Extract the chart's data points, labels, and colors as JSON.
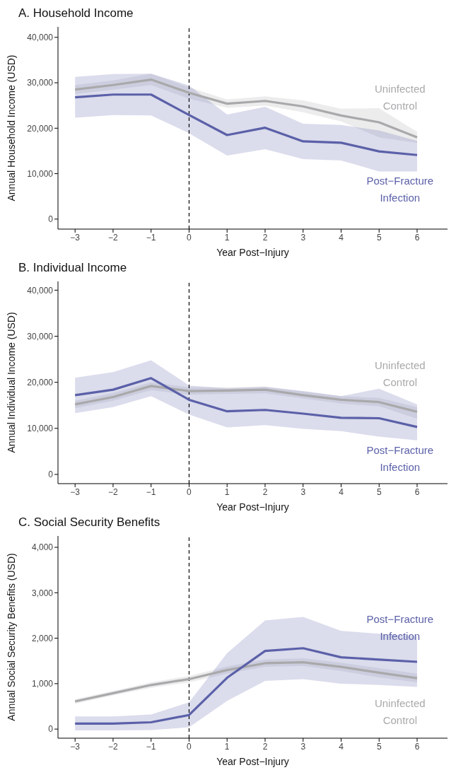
{
  "chart_data": [
    {
      "type": "line",
      "title": "A. Household Income",
      "xlabel": "Year Post−Injury",
      "ylabel": "Annual Household Income (USD)",
      "x": [
        -3,
        -2,
        -1,
        0,
        1,
        2,
        3,
        4,
        5,
        6
      ],
      "xlim": [
        -3.45,
        6.8
      ],
      "xticks": [
        -3,
        -2,
        -1,
        0,
        1,
        2,
        3,
        4,
        5,
        6
      ],
      "ylim": [
        -2200,
        42300
      ],
      "yticks": [
        {
          "value": 0,
          "label": "0"
        },
        {
          "value": 10000,
          "label": "10,000"
        },
        {
          "value": 20000,
          "label": "20,000"
        },
        {
          "value": 30000,
          "label": "30,000"
        },
        {
          "value": 40000,
          "label": "40,000"
        }
      ],
      "ref_lines": [
        {
          "axis": "x",
          "value": 0,
          "color": "#000000",
          "line_style": "dashed"
        }
      ],
      "series": [
        {
          "name": "Uninfected Control",
          "color": "#a9a9ab",
          "values": [
            28500,
            29500,
            30700,
            27800,
            25400,
            26000,
            24800,
            22800,
            21300,
            18000
          ],
          "lower": [
            27500,
            28500,
            29500,
            26500,
            24500,
            25000,
            23500,
            21500,
            18000,
            16800
          ],
          "upper": [
            29500,
            30500,
            32000,
            29000,
            26300,
            27000,
            26100,
            24300,
            24400,
            19200
          ]
        },
        {
          "name": "Post−Fracture Infection",
          "color": "#5b60a8",
          "values": [
            26800,
            27400,
            27400,
            22900,
            18500,
            20100,
            17100,
            16800,
            14900,
            14100
          ],
          "lower": [
            22300,
            22900,
            22800,
            18900,
            14000,
            15400,
            13200,
            12900,
            10500,
            10500
          ],
          "upper": [
            31300,
            31900,
            32000,
            29400,
            23000,
            24700,
            21000,
            20700,
            19500,
            17200
          ]
        }
      ]
    },
    {
      "type": "line",
      "title": "B. Individual Income",
      "xlabel": "Year Post−Injury",
      "ylabel": "Annual Individual Income (USD)",
      "x": [
        -3,
        -2,
        -1,
        0,
        1,
        2,
        3,
        4,
        5,
        6
      ],
      "xlim": [
        -3.45,
        6.8
      ],
      "xticks": [
        -3,
        -2,
        -1,
        0,
        1,
        2,
        3,
        4,
        5,
        6
      ],
      "ylim": [
        -2000,
        41900
      ],
      "yticks": [
        {
          "value": 0,
          "label": "0"
        },
        {
          "value": 10000,
          "label": "10,000"
        },
        {
          "value": 20000,
          "label": "20,000"
        },
        {
          "value": 30000,
          "label": "30,000"
        },
        {
          "value": 40000,
          "label": "40,000"
        }
      ],
      "ref_lines": [
        {
          "axis": "x",
          "value": 0,
          "color": "#000000",
          "line_style": "dashed"
        }
      ],
      "series": [
        {
          "name": "Uninfected Control",
          "color": "#a9a9ab",
          "values": [
            15200,
            16800,
            19200,
            18100,
            18200,
            18400,
            17200,
            16200,
            15700,
            13600
          ],
          "lower": [
            14400,
            16000,
            18300,
            17300,
            17500,
            17600,
            16500,
            15400,
            14800,
            12100
          ],
          "upper": [
            16000,
            17700,
            20000,
            18900,
            18900,
            19100,
            18000,
            17000,
            16600,
            14600
          ]
        },
        {
          "name": "Post−Fracture Infection",
          "color": "#5b60a8",
          "values": [
            17200,
            18400,
            20900,
            16200,
            13700,
            14000,
            13200,
            12300,
            12200,
            10300
          ],
          "lower": [
            13300,
            14600,
            17000,
            13000,
            10200,
            10700,
            9900,
            9400,
            8200,
            7400
          ],
          "upper": [
            21000,
            22200,
            24800,
            19300,
            18700,
            19000,
            18100,
            17000,
            18600,
            15200
          ]
        }
      ]
    },
    {
      "type": "line",
      "title": "C. Social Security Benefits",
      "xlabel": "Year Post−Injury",
      "ylabel": "Annual Social Security Benefits (USD)",
      "x": [
        -3,
        -2,
        -1,
        0,
        1,
        2,
        3,
        4,
        5,
        6
      ],
      "xlim": [
        -3.45,
        6.8
      ],
      "xticks": [
        -3,
        -2,
        -1,
        0,
        1,
        2,
        3,
        4,
        5,
        6
      ],
      "ylim": [
        -200,
        4250
      ],
      "yticks": [
        {
          "value": 0,
          "label": "0"
        },
        {
          "value": 1000,
          "label": "1,000"
        },
        {
          "value": 2000,
          "label": "2,000"
        },
        {
          "value": 3000,
          "label": "3,000"
        },
        {
          "value": 4000,
          "label": "4,000"
        }
      ],
      "ref_lines": [
        {
          "axis": "x",
          "value": 0,
          "color": "#000000",
          "line_style": "dashed"
        }
      ],
      "series": [
        {
          "name": "Uninfected Control",
          "color": "#a9a9ab",
          "values": [
            610,
            790,
            970,
            1100,
            1300,
            1450,
            1470,
            1370,
            1240,
            1120
          ],
          "lower": [
            560,
            740,
            910,
            1030,
            1220,
            1370,
            1390,
            1280,
            1140,
            1030
          ],
          "upper": [
            660,
            840,
            1030,
            1170,
            1380,
            1530,
            1560,
            1460,
            1340,
            1220
          ]
        },
        {
          "name": "Post−Fracture Infection",
          "color": "#5b60a8",
          "values": [
            120,
            120,
            150,
            310,
            1130,
            1720,
            1780,
            1580,
            1530,
            1480
          ],
          "lower": [
            -30,
            -30,
            -20,
            40,
            620,
            1060,
            1100,
            1000,
            970,
            930
          ],
          "upper": [
            280,
            280,
            320,
            590,
            1670,
            2390,
            2470,
            2160,
            2100,
            2040
          ]
        }
      ]
    }
  ]
}
